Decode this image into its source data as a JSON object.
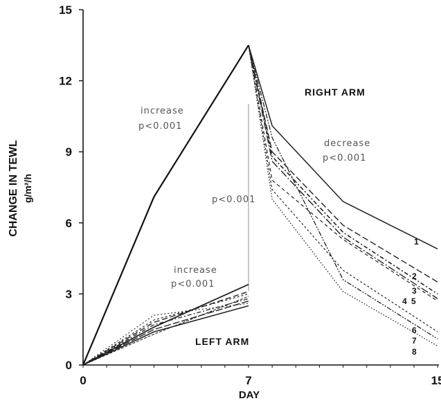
{
  "chart_data": {
    "type": "line",
    "xlabel": "DAY",
    "ylabel": "CHANGE IN TEWL",
    "ylabel_unit": "g/m²/h",
    "xlim": [
      0,
      15
    ],
    "ylim": [
      0,
      15
    ],
    "x_ticks": [
      0,
      7,
      15
    ],
    "x_tick_labels": [
      "0",
      "7",
      "15"
    ],
    "y_ticks": [
      0,
      3,
      6,
      9,
      12,
      15
    ],
    "y_tick_labels": [
      "0",
      "3",
      "6",
      "9",
      "12",
      "15"
    ],
    "annotations": {
      "right_arm": "RIGHT ARM",
      "left_arm": "LEFT ARM",
      "increase_label": "increase",
      "increase_p": "p<0.001",
      "decrease_label": "decrease",
      "decrease_p": "p<0.001",
      "middle_p": "p<0.001",
      "left_increase_label": "increase",
      "left_increase_p": "p<0.001"
    },
    "right_arm_increase": {
      "x": [
        0,
        3,
        7
      ],
      "y": [
        0,
        7.1,
        13.5
      ]
    },
    "right_arm_decrease": [
      {
        "label": "1",
        "x": [
          7,
          8,
          11,
          15
        ],
        "y": [
          13.5,
          10.1,
          6.9,
          4.9
        ]
      },
      {
        "label": "2",
        "x": [
          7,
          8,
          11,
          15
        ],
        "y": [
          13.5,
          9.0,
          5.9,
          3.5
        ]
      },
      {
        "label": "3",
        "x": [
          7,
          8,
          11,
          15
        ],
        "y": [
          13.5,
          8.8,
          5.6,
          3.0
        ]
      },
      {
        "label": "4",
        "x": [
          7,
          8,
          11,
          15
        ],
        "y": [
          13.5,
          8.6,
          5.4,
          2.8
        ]
      },
      {
        "label": "5",
        "x": [
          7,
          8,
          11,
          15
        ],
        "y": [
          13.5,
          7.8,
          5.3,
          2.7
        ]
      },
      {
        "label": "6",
        "x": [
          7,
          8,
          11,
          15
        ],
        "y": [
          13.5,
          7.4,
          4.0,
          1.4
        ]
      },
      {
        "label": "7",
        "x": [
          7,
          8,
          11,
          15
        ],
        "y": [
          13.5,
          9.6,
          3.6,
          1.1
        ]
      },
      {
        "label": "8",
        "x": [
          7,
          8,
          11,
          15
        ],
        "y": [
          13.5,
          7.0,
          3.1,
          0.8
        ]
      }
    ],
    "left_arm": [
      {
        "x": [
          0,
          3,
          7
        ],
        "y": [
          0,
          1.6,
          3.4
        ]
      },
      {
        "x": [
          0,
          3,
          7
        ],
        "y": [
          0,
          1.8,
          3.1
        ]
      },
      {
        "x": [
          0,
          3,
          7
        ],
        "y": [
          0,
          1.9,
          3.0
        ]
      },
      {
        "x": [
          0,
          3,
          7
        ],
        "y": [
          0,
          1.7,
          2.8
        ]
      },
      {
        "x": [
          0,
          3,
          7
        ],
        "y": [
          0,
          2.1,
          2.6
        ]
      },
      {
        "x": [
          0,
          3,
          7
        ],
        "y": [
          0,
          1.5,
          2.7
        ]
      },
      {
        "x": [
          0,
          3,
          7
        ],
        "y": [
          0,
          1.4,
          2.5
        ]
      },
      {
        "x": [
          0,
          3,
          7
        ],
        "y": [
          0,
          1.3,
          2.9
        ]
      }
    ]
  }
}
